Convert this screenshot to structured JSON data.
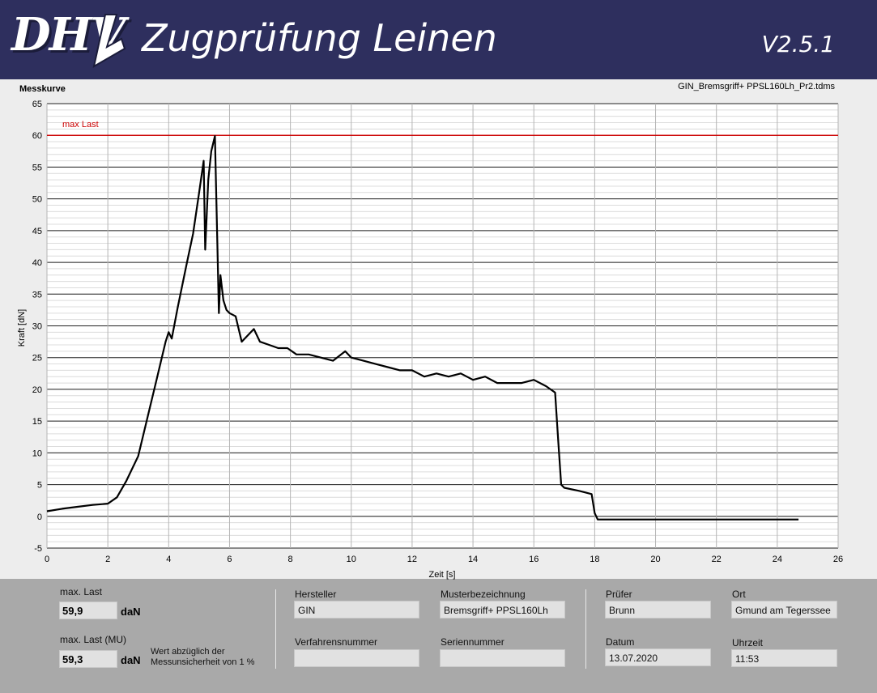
{
  "header": {
    "logo_text": "DHV",
    "title": "Zugprüfung Leinen",
    "version": "V2.5.1"
  },
  "chart_panel": {
    "label": "Messkurve",
    "file_name": "GIN_Bremsgriff+ PPSL160Lh_Pr2.tdms"
  },
  "chart_data": {
    "type": "line",
    "xlabel": "Zeit [s]",
    "ylabel": "Kraft [dN]",
    "xlim": [
      0,
      26
    ],
    "ylim": [
      -5,
      65
    ],
    "x_ticks": [
      0,
      2,
      4,
      6,
      8,
      10,
      12,
      14,
      16,
      18,
      20,
      22,
      24,
      26
    ],
    "y_ticks": [
      -5,
      0,
      5,
      10,
      15,
      20,
      25,
      30,
      35,
      40,
      45,
      50,
      55,
      60,
      65
    ],
    "grid": true,
    "threshold": {
      "label": "max Last",
      "value": 60,
      "color": "#cc0000"
    },
    "series": [
      {
        "color": "#000000",
        "x": [
          0,
          0.5,
          1,
          1.5,
          2,
          2.3,
          2.6,
          3,
          3.3,
          3.6,
          3.9,
          4.0,
          4.1,
          4.3,
          4.6,
          4.8,
          5.0,
          5.15,
          5.2,
          5.3,
          5.4,
          5.52,
          5.6,
          5.65,
          5.7,
          5.8,
          5.9,
          6.0,
          6.2,
          6.4,
          6.6,
          6.8,
          7.0,
          7.3,
          7.6,
          7.9,
          8.2,
          8.6,
          9.0,
          9.4,
          9.8,
          10.0,
          10.4,
          10.8,
          11.2,
          11.6,
          12.0,
          12.4,
          12.8,
          13.2,
          13.6,
          14.0,
          14.4,
          14.8,
          15.2,
          15.6,
          16.0,
          16.4,
          16.7,
          16.8,
          16.9,
          17.0,
          17.5,
          17.9,
          18.0,
          18.1,
          20,
          22,
          24,
          24.7
        ],
        "y": [
          0.8,
          1.2,
          1.5,
          1.8,
          2.0,
          3.0,
          5.5,
          9.5,
          15.5,
          21.5,
          27.5,
          29.0,
          28.0,
          33.0,
          40.0,
          44.5,
          51.0,
          56.0,
          42.0,
          53.0,
          57.5,
          59.9,
          43.0,
          32.0,
          38.0,
          34.0,
          32.5,
          32.0,
          31.5,
          27.5,
          28.5,
          29.5,
          27.5,
          27.0,
          26.5,
          26.5,
          25.5,
          25.5,
          25.0,
          24.5,
          26.0,
          25.0,
          24.5,
          24.0,
          23.5,
          23.0,
          23.0,
          22.0,
          22.5,
          22.0,
          22.5,
          21.5,
          22.0,
          21.0,
          21.0,
          21.0,
          21.5,
          20.5,
          19.5,
          12.0,
          5.0,
          4.5,
          4.0,
          3.5,
          0.5,
          -0.5,
          -0.5,
          -0.5,
          -0.5,
          -0.5
        ]
      }
    ]
  },
  "results": {
    "max_load_label": "max. Last",
    "max_load_value": "59,9",
    "max_load_unit": "daN",
    "max_load_mu_label": "max. Last (MU)",
    "max_load_mu_value": "59,3",
    "max_load_mu_unit": "daN",
    "mu_note_line1": "Wert abzüglich der",
    "mu_note_line2": "Messunsicherheit von 1 %"
  },
  "info": {
    "hersteller_label": "Hersteller",
    "hersteller_value": "GIN",
    "muster_label": "Musterbezeichnung",
    "muster_value": "Bremsgriff+ PPSL160Lh",
    "verfahren_label": "Verfahrensnummer",
    "verfahren_value": "",
    "serien_label": "Seriennummer",
    "serien_value": "",
    "pruefer_label": "Prüfer",
    "pruefer_value": "Brunn",
    "ort_label": "Ort",
    "ort_value": "Gmund am Tegerssee",
    "datum_label": "Datum",
    "datum_value": "13.07.2020",
    "uhrzeit_label": "Uhrzeit",
    "uhrzeit_value": "11:53"
  }
}
